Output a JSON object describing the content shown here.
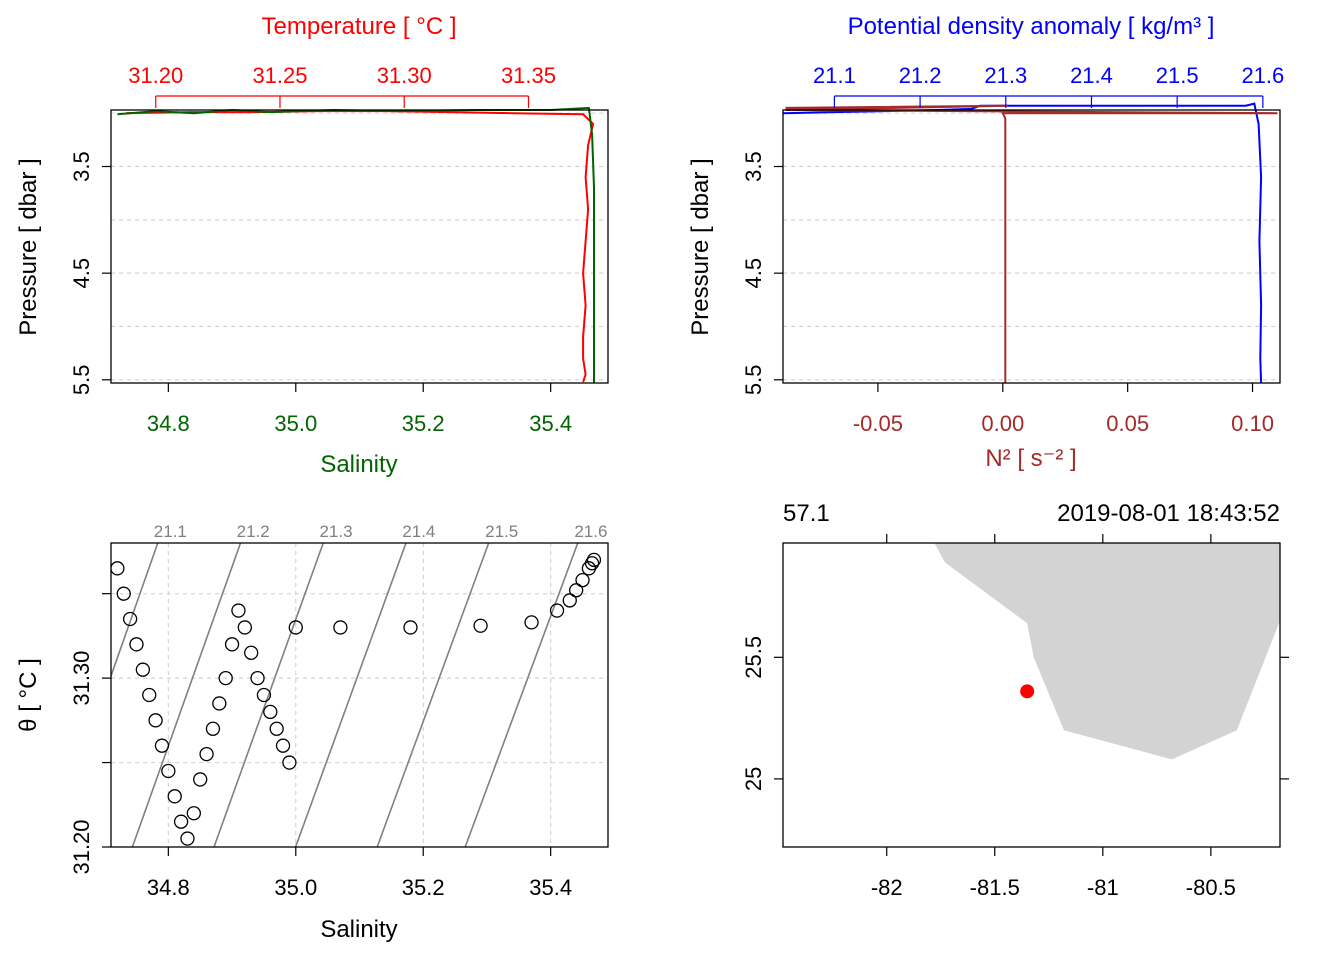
{
  "colors": {
    "temperature": "#ff0000",
    "salinity": "#006400",
    "density": "#0000ff",
    "n2": "#a52a2a",
    "station": "#ff0000",
    "land": "#d3d3d3",
    "grid": "#d3d3d3",
    "isopycnal": "#808080"
  },
  "chart_data": [
    {
      "type": "line",
      "panel": "temperature-salinity-profile",
      "title": "Temperature [ °C ]",
      "xlabel_top": "Temperature [ °C ]",
      "xlabel_bottom": "Salinity",
      "ylabel": "Pressure [ dbar ]",
      "xlim_top": [
        31.182,
        31.382
      ],
      "xlim_bottom": [
        34.71,
        35.49
      ],
      "ylim": [
        5.53,
        2.97
      ],
      "y_reversed": true,
      "top_ticks": [
        "31.20",
        "31.25",
        "31.30",
        "31.35"
      ],
      "bottom_ticks": [
        "34.8",
        "35.0",
        "35.2",
        "35.4"
      ],
      "y_ticks": [
        "3.5",
        "4.5",
        "5.5"
      ],
      "grid": true,
      "series": [
        {
          "name": "Temperature",
          "axis": "top",
          "x": [
            31.188,
            31.214,
            31.24,
            31.266,
            31.292,
            31.318,
            31.344,
            31.372,
            31.376,
            31.374,
            31.373,
            31.374,
            31.373,
            31.372,
            31.373,
            31.372,
            31.372,
            31.373,
            31.372
          ],
          "y": [
            3.0,
            2.99,
            2.99,
            2.98,
            2.98,
            2.99,
            3.0,
            3.01,
            3.1,
            3.3,
            3.6,
            3.9,
            4.2,
            4.5,
            4.8,
            5.1,
            5.3,
            5.45,
            5.52
          ]
        },
        {
          "name": "Salinity",
          "axis": "bottom",
          "x": [
            34.72,
            34.78,
            34.84,
            34.9,
            34.96,
            35.06,
            35.16,
            35.28,
            35.4,
            35.46,
            35.465,
            35.468,
            35.468,
            35.468,
            35.468,
            35.468
          ],
          "y": [
            3.01,
            2.98,
            3.0,
            2.97,
            2.99,
            2.97,
            2.98,
            2.97,
            2.97,
            2.95,
            3.2,
            3.7,
            4.3,
            4.9,
            5.3,
            5.53
          ]
        }
      ]
    },
    {
      "type": "line",
      "panel": "density-n2-profile",
      "xlabel_top": "Potential density anomaly [ kg/m³ ]",
      "xlabel_bottom": "N² [ s⁻² ]",
      "ylabel": "Pressure [ dbar ]",
      "xlim_top": [
        21.04,
        21.62
      ],
      "xlim_bottom": [
        -0.088,
        0.111
      ],
      "ylim": [
        5.53,
        2.97
      ],
      "y_reversed": true,
      "top_ticks": [
        "21.1",
        "21.2",
        "21.3",
        "21.4",
        "21.5",
        "21.6"
      ],
      "bottom_ticks": [
        "-0.05",
        "0.00",
        "0.05",
        "0.10"
      ],
      "y_ticks": [
        "3.5",
        "4.5",
        "5.5"
      ],
      "grid": true,
      "series": [
        {
          "name": "Potential density anomaly",
          "axis": "top",
          "x": [
            21.04,
            21.1,
            21.16,
            21.22,
            21.26,
            21.27,
            21.58,
            21.59,
            21.595,
            21.598,
            21.596,
            21.598,
            21.597,
            21.598
          ],
          "y": [
            3.0,
            2.99,
            2.98,
            2.97,
            2.96,
            2.93,
            2.93,
            2.91,
            3.1,
            3.6,
            4.2,
            4.8,
            5.3,
            5.53
          ]
        },
        {
          "name": "N²",
          "axis": "bottom",
          "x": [
            -0.087,
            0.002,
            -0.087,
            0.11,
            0.0,
            0.001,
            0.001,
            0.001,
            0.001
          ],
          "y": [
            2.95,
            2.93,
            2.97,
            3.0,
            3.0,
            3.05,
            4.0,
            5.0,
            5.53
          ]
        }
      ]
    },
    {
      "type": "scatter",
      "panel": "ts-diagram",
      "xlabel": "Salinity",
      "ylabel": "θ [ °C ]",
      "xlim": [
        34.71,
        35.49
      ],
      "ylim": [
        31.2,
        31.38
      ],
      "x_ticks": [
        "34.8",
        "35.0",
        "35.2",
        "35.4"
      ],
      "y_ticks": [
        "31.20",
        "31.30"
      ],
      "isopycnal_labels": [
        "21.1",
        "21.2",
        "21.3",
        "21.4",
        "21.5",
        "21.6"
      ],
      "grid": true,
      "x": [
        34.72,
        34.73,
        34.74,
        34.75,
        34.76,
        34.77,
        34.78,
        34.79,
        34.8,
        34.81,
        34.82,
        34.83,
        34.84,
        34.85,
        34.86,
        34.87,
        34.88,
        34.89,
        34.9,
        34.91,
        34.92,
        34.93,
        34.94,
        34.95,
        34.96,
        34.97,
        34.98,
        34.99,
        35.0,
        35.07,
        35.18,
        35.29,
        35.37,
        35.41,
        35.43,
        35.44,
        35.45,
        35.46,
        35.465,
        35.468
      ],
      "y": [
        31.365,
        31.35,
        31.335,
        31.32,
        31.305,
        31.29,
        31.275,
        31.26,
        31.245,
        31.23,
        31.215,
        31.205,
        31.22,
        31.24,
        31.255,
        31.27,
        31.285,
        31.3,
        31.32,
        31.34,
        31.33,
        31.315,
        31.3,
        31.29,
        31.28,
        31.27,
        31.26,
        31.25,
        31.33,
        31.33,
        31.33,
        31.331,
        31.333,
        31.34,
        31.346,
        31.352,
        31.358,
        31.365,
        31.368,
        31.37
      ]
    },
    {
      "type": "scatter",
      "panel": "station-map",
      "xlabel": "",
      "ylabel": "",
      "xlim": [
        -82.48,
        -80.18
      ],
      "ylim": [
        24.72,
        25.97
      ],
      "x_ticks": [
        "-82",
        "-81.5",
        "-81",
        "-80.5"
      ],
      "y_ticks": [
        "25",
        "25.5"
      ],
      "top_left_text": "57.1",
      "top_right_text": "2019-08-01 18:43:52",
      "station": {
        "lon": -81.35,
        "lat": 25.36
      },
      "land_polygon": {
        "lon": [
          -81.78,
          -81.73,
          -81.35,
          -81.32,
          -81.18,
          -80.68,
          -80.38,
          -80.18,
          -80.18
        ],
        "lat": [
          25.97,
          25.89,
          25.64,
          25.5,
          25.2,
          25.08,
          25.2,
          25.65,
          25.97
        ]
      }
    }
  ]
}
